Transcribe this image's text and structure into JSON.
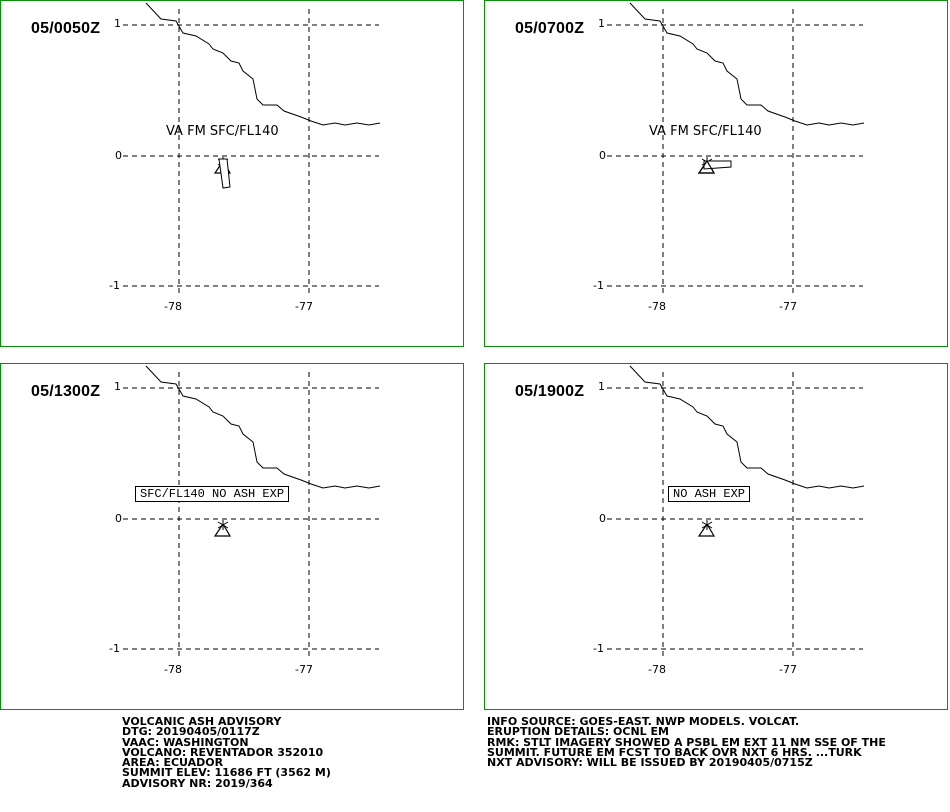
{
  "panels": [
    {
      "time": "05/0050Z",
      "label": "VA FM SFC/FL140",
      "boxed": false,
      "plume": "south"
    },
    {
      "time": "05/0700Z",
      "label": "VA FM SFC/FL140",
      "boxed": false,
      "plume": "east"
    },
    {
      "time": "05/1300Z",
      "label": "SFC/FL140 NO ASH EXP",
      "boxed": true,
      "plume": "none"
    },
    {
      "time": "05/1900Z",
      "label": "NO ASH EXP",
      "boxed": true,
      "plume": "none"
    }
  ],
  "axis": {
    "lat_ticks": [
      "1",
      "0",
      "-1"
    ],
    "lon_ticks": [
      "-78",
      "-77"
    ]
  },
  "advisory": {
    "left": [
      "VOLCANIC ASH ADVISORY",
      "DTG: 20190405/0117Z",
      "VAAC: WASHINGTON",
      "VOLCANO: REVENTADOR 352010",
      "AREA: ECUADOR",
      "SUMMIT ELEV: 11686 FT (3562 M)",
      "ADVISORY NR: 2019/364"
    ],
    "right": [
      "INFO SOURCE: GOES-EAST. NWP MODELS. VOLCAT.",
      "ERUPTION DETAILS: OCNL EM",
      "RMK: STLT IMAGERY SHOWED A PSBL EM EXT 11 NM SSE OF THE",
      "SUMMIT. FUTURE EM FCST TO BACK OVR NXT 6 HRS. ...TURK",
      "NXT ADVISORY: WILL BE ISSUED BY 20190405/0715Z"
    ]
  },
  "colors": {
    "border": "#0b8f0b",
    "lines": "#000000"
  }
}
